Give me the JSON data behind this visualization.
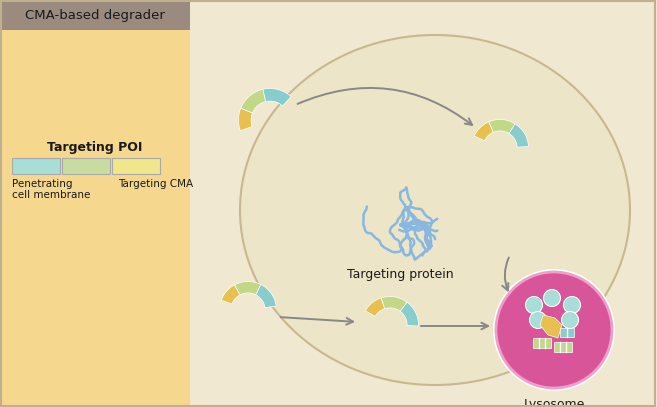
{
  "bg_left_color": "#F5D78E",
  "bg_header_color": "#9B8B7F",
  "bg_right_color": "#F0E8D0",
  "title_text": "CMA-based degrader",
  "legend_title": "Targeting POI",
  "legend_box1_color": "#A8DDD8",
  "legend_box2_color": "#C8DCA0",
  "legend_box3_color": "#F0E68C",
  "label1a": "Penetrating",
  "label1b": "cell membrane",
  "label2": "Targeting CMA",
  "label_targeting_protein": "Targeting protein",
  "label_lysosome": "Lysosome",
  "lysosome_color": "#D8559A",
  "lysosome_edge": "#E888B8",
  "degrader_yellow": "#E8C050",
  "degrader_green": "#C0D888",
  "degrader_cyan": "#88CCCC",
  "protein_color": "#88B8E0",
  "arrow_color": "#888888",
  "cell_edge_color": "#C8B890",
  "cell_face_color": "#EDE5C8"
}
